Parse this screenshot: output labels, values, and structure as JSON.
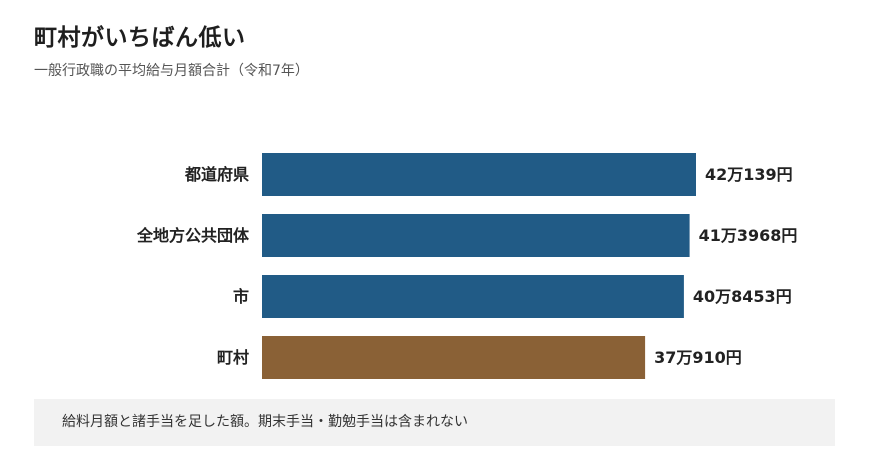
{
  "title": "町村がいちばん低い",
  "subtitle": "一般行政職の平均給与月額合計（令和7年）",
  "footnote": "給料月額と諸手当を足した額。期末手当・勤勉手当は含まれない",
  "chart_data": {
    "type": "bar",
    "orientation": "horizontal",
    "title": "町村がいちばん低い",
    "subtitle": "一般行政職の平均給与月額合計（令和7年）",
    "categories": [
      "都道府県",
      "全地方公共団体",
      "市",
      "町村"
    ],
    "values": [
      420139,
      413968,
      408453,
      370910
    ],
    "value_labels": [
      "42万139円",
      "41万3968円",
      "40万8453円",
      "37万910円"
    ],
    "colors": [
      "#215b86",
      "#215b86",
      "#215b86",
      "#8a6136"
    ],
    "highlight_category": "町村",
    "grid": false,
    "legend": "none"
  }
}
